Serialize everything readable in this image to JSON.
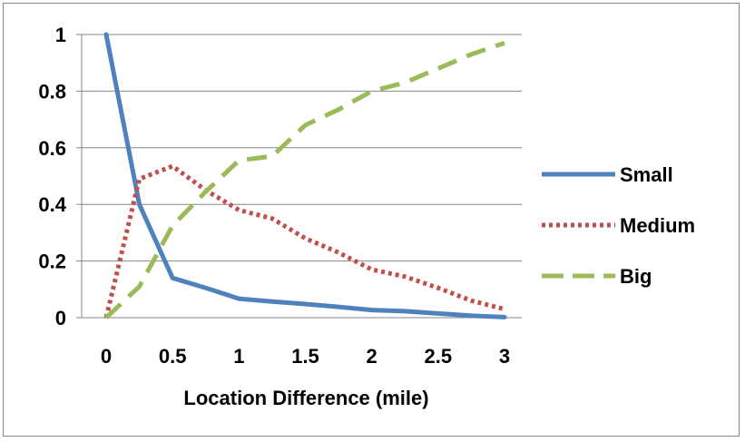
{
  "chart_data": {
    "type": "line",
    "title": "",
    "xlabel": "Location Difference (mile)",
    "ylabel": "",
    "xlim": [
      0,
      3
    ],
    "ylim": [
      0,
      1
    ],
    "x_ticks": [
      0,
      0.5,
      1,
      1.5,
      2,
      2.5,
      3
    ],
    "y_ticks": [
      0,
      0.2,
      0.4,
      0.6,
      0.8,
      1
    ],
    "x_tick_labels": [
      "0",
      "0.5",
      "1",
      "1.5",
      "2",
      "2.5",
      "3"
    ],
    "y_tick_labels": [
      "0",
      "0.2",
      "0.4",
      "0.6",
      "0.8",
      "1"
    ],
    "grid": "horizontal",
    "legend_position": "right",
    "x": [
      0,
      0.25,
      0.5,
      0.75,
      1,
      1.25,
      1.5,
      1.75,
      2,
      2.25,
      2.5,
      2.75,
      3
    ],
    "series": [
      {
        "name": "Small",
        "color": "#4F81BD",
        "style": "solid",
        "values": [
          1.0,
          0.4,
          0.14,
          0.105,
          0.067,
          0.057,
          0.048,
          0.038,
          0.027,
          0.023,
          0.015,
          0.007,
          0.002
        ]
      },
      {
        "name": "Medium",
        "color": "#C0504D",
        "style": "dotted",
        "values": [
          0.0,
          0.49,
          0.535,
          0.45,
          0.38,
          0.35,
          0.28,
          0.23,
          0.17,
          0.145,
          0.105,
          0.06,
          0.03
        ]
      },
      {
        "name": "Big",
        "color": "#9BBB59",
        "style": "dashed",
        "values": [
          0.0,
          0.11,
          0.325,
          0.445,
          0.555,
          0.57,
          0.68,
          0.735,
          0.8,
          0.83,
          0.88,
          0.93,
          0.97
        ]
      }
    ]
  }
}
